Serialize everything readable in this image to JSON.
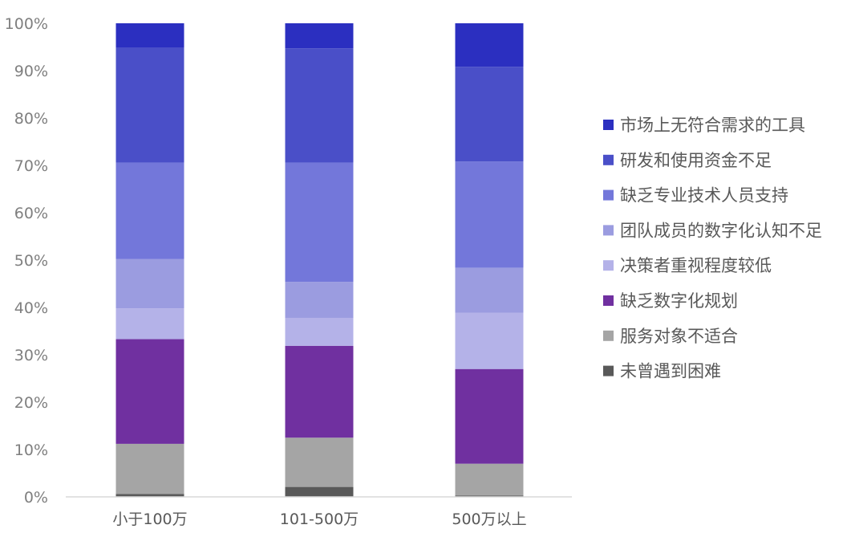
{
  "chart_data": {
    "type": "bar",
    "stacked": true,
    "percent": true,
    "categories": [
      "小于100万",
      "101-500万",
      "500万以上"
    ],
    "yticks": [
      "0%",
      "10%",
      "20%",
      "30%",
      "40%",
      "50%",
      "60%",
      "70%",
      "80%",
      "90%",
      "100%"
    ],
    "ylim": [
      0,
      100
    ],
    "grid": false,
    "legend_position": "right",
    "series": [
      {
        "name": "未曾遇到困难",
        "color": "#595959",
        "values": [
          0.6,
          2.1,
          0.3
        ]
      },
      {
        "name": "服务对象不适合",
        "color": "#a5a5a5",
        "values": [
          10.6,
          10.4,
          6.7
        ]
      },
      {
        "name": "缺乏数字化规划",
        "color": "#7030a0",
        "values": [
          22.1,
          19.4,
          20.0
        ]
      },
      {
        "name": "决策者重视程度较低",
        "color": "#b4b2e8",
        "values": [
          6.5,
          5.9,
          11.9
        ]
      },
      {
        "name": "团队成员的数字化认知不足",
        "color": "#9b9ce0",
        "values": [
          10.4,
          7.6,
          9.5
        ]
      },
      {
        "name": "缺乏专业技术人员支持",
        "color": "#7377da",
        "values": [
          20.4,
          25.2,
          22.4
        ]
      },
      {
        "name": "研发和使用资金不足",
        "color": "#4a4fc8",
        "values": [
          24.2,
          24.1,
          20.0
        ]
      },
      {
        "name": "市场上无符合需求的工具",
        "color": "#2b2fc0",
        "values": [
          5.2,
          5.3,
          9.2
        ]
      }
    ]
  }
}
